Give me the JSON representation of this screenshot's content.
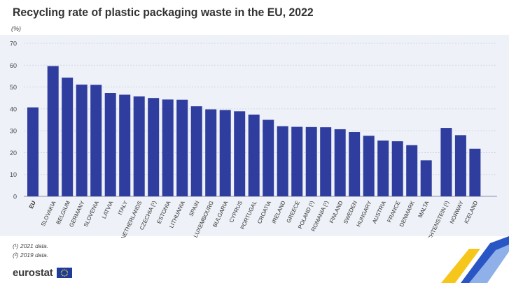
{
  "title": "Recycling rate of plastic packaging waste in the EU, 2022",
  "unit": "(%)",
  "notes": [
    "(¹) 2021 data.",
    "(²) 2019 data."
  ],
  "brand": {
    "name": "eurostat",
    "logo_icon": "eu-flag-icon"
  },
  "colors": {
    "bar": "#2e3d9e",
    "panel": "#eef1f7",
    "grid": "#c9cfe0",
    "text": "#333333"
  },
  "chart_data": {
    "type": "bar",
    "title": "Recycling rate of plastic packaging waste in the EU, 2022",
    "ylabel": "(%)",
    "xlabel": "",
    "ylim": [
      0,
      70
    ],
    "yticks": [
      0,
      10,
      20,
      30,
      40,
      50,
      60,
      70
    ],
    "grid": true,
    "categories": [
      "EU",
      "SLOVAKIA",
      "BELGIUM",
      "GERMANY",
      "SLOVENIA",
      "LATVIA",
      "ITALY",
      "NETHERLANDS",
      "CZECHIA (¹)",
      "ESTONIA",
      "LITHUANIA",
      "SPAIN",
      "LUXEMBOURG",
      "BULGARIA",
      "CYPRUS",
      "PORTUGAL",
      "CROATIA",
      "IRELAND",
      "GREECE",
      "POLAND (¹)",
      "ROMANIA (¹)",
      "FINLAND",
      "SWEDEN",
      "HUNGARY",
      "AUSTRIA",
      "FRANCE",
      "DENMARK",
      "MALTA",
      "LIECHTENSTEIN (¹)",
      "NORWAY",
      "ICELAND"
    ],
    "values": [
      40.7,
      59.6,
      54.3,
      51.1,
      51.0,
      47.3,
      46.5,
      45.7,
      45.0,
      44.3,
      44.2,
      41.2,
      39.8,
      39.5,
      38.9,
      37.4,
      35.0,
      32.1,
      31.8,
      31.7,
      31.6,
      30.7,
      29.4,
      27.7,
      25.5,
      25.2,
      23.4,
      16.5,
      31.3,
      28.0,
      21.8
    ]
  }
}
